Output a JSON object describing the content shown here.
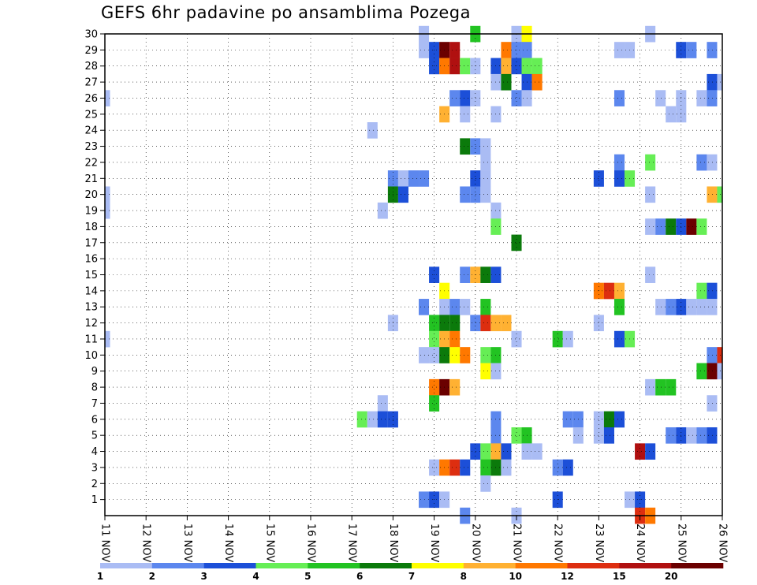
{
  "chart_data": {
    "type": "heatmap",
    "title": "GEFS 6hr padavine po ansamblima Pozega",
    "xlabel": "",
    "ylabel": "",
    "x_ticks": [
      "11 NOV",
      "12 NOV",
      "13 NOV",
      "14 NOV",
      "15 NOV",
      "16 NOV",
      "17 NOV",
      "18 NOV",
      "19 NOV",
      "20 NOV",
      "21 NOV",
      "22 NOV",
      "23 NOV",
      "24 NOV",
      "25 NOV",
      "26 NOV"
    ],
    "xlim": [
      0,
      60
    ],
    "y_ticks": [
      "1",
      "2",
      "3",
      "4",
      "5",
      "6",
      "7",
      "8",
      "9",
      "10",
      "11",
      "12",
      "13",
      "14",
      "15",
      "16",
      "17",
      "18",
      "19",
      "20",
      "21",
      "22",
      "23",
      "24",
      "25",
      "26",
      "27",
      "28",
      "29",
      "30"
    ],
    "ylim": [
      0,
      30
    ],
    "grid": true,
    "legend": {
      "placement": "bottom",
      "labels": [
        "1",
        "2",
        "3",
        "4",
        "5",
        "6",
        "7",
        "8",
        "10",
        "12",
        "15",
        "20"
      ],
      "colors": [
        "#aabcf4",
        "#5c87ee",
        "#1c4fd8",
        "#66ee55",
        "#22c322",
        "#0b7a0b",
        "#ffff00",
        "#ffb132",
        "#ff7800",
        "#dd2e10",
        "#b01010",
        "#6b0000"
      ]
    },
    "cells": [
      [
        31,
        30,
        0
      ],
      [
        36,
        30,
        4
      ],
      [
        40,
        30,
        0
      ],
      [
        41,
        30,
        6
      ],
      [
        53,
        30,
        0
      ],
      [
        31,
        29,
        0
      ],
      [
        32,
        29,
        2
      ],
      [
        33,
        29,
        11
      ],
      [
        34,
        29,
        10
      ],
      [
        39,
        29,
        8
      ],
      [
        40,
        29,
        1
      ],
      [
        41,
        29,
        1
      ],
      [
        50,
        29,
        0
      ],
      [
        51,
        29,
        0
      ],
      [
        56,
        29,
        2
      ],
      [
        57,
        29,
        1
      ],
      [
        59,
        29,
        1
      ],
      [
        32,
        28,
        2
      ],
      [
        33,
        28,
        8
      ],
      [
        34,
        28,
        10
      ],
      [
        35,
        28,
        3
      ],
      [
        36,
        28,
        0
      ],
      [
        38,
        28,
        2
      ],
      [
        39,
        28,
        7
      ],
      [
        40,
        28,
        2
      ],
      [
        41,
        28,
        3
      ],
      [
        42,
        28,
        3
      ],
      [
        38,
        27,
        0
      ],
      [
        39,
        27,
        5
      ],
      [
        41,
        27,
        2
      ],
      [
        42,
        27,
        8
      ],
      [
        59,
        27,
        2
      ],
      [
        60,
        27,
        0
      ],
      [
        0,
        26,
        0
      ],
      [
        34,
        26,
        1
      ],
      [
        35,
        26,
        2
      ],
      [
        36,
        26,
        0
      ],
      [
        40,
        26,
        1
      ],
      [
        41,
        26,
        0
      ],
      [
        50,
        26,
        1
      ],
      [
        54,
        26,
        0
      ],
      [
        56,
        26,
        0
      ],
      [
        58,
        26,
        0
      ],
      [
        59,
        26,
        1
      ],
      [
        33,
        25,
        7
      ],
      [
        35,
        25,
        0
      ],
      [
        38,
        25,
        0
      ],
      [
        55,
        25,
        0
      ],
      [
        56,
        25,
        0
      ],
      [
        26,
        24,
        0
      ],
      [
        35,
        23,
        5
      ],
      [
        36,
        23,
        1
      ],
      [
        37,
        23,
        0
      ],
      [
        37,
        22,
        0
      ],
      [
        50,
        22,
        1
      ],
      [
        53,
        22,
        3
      ],
      [
        58,
        22,
        1
      ],
      [
        59,
        22,
        0
      ],
      [
        28,
        21,
        1
      ],
      [
        29,
        21,
        0
      ],
      [
        30,
        21,
        1
      ],
      [
        31,
        21,
        1
      ],
      [
        36,
        21,
        2
      ],
      [
        37,
        21,
        0
      ],
      [
        48,
        21,
        2
      ],
      [
        50,
        21,
        2
      ],
      [
        51,
        21,
        3
      ],
      [
        0,
        20,
        0
      ],
      [
        28,
        20,
        5
      ],
      [
        29,
        20,
        2
      ],
      [
        35,
        20,
        1
      ],
      [
        36,
        20,
        1
      ],
      [
        37,
        20,
        0
      ],
      [
        53,
        20,
        0
      ],
      [
        59,
        20,
        7
      ],
      [
        60,
        20,
        3
      ],
      [
        0,
        19,
        0
      ],
      [
        27,
        19,
        0
      ],
      [
        38,
        19,
        0
      ],
      [
        38,
        18,
        3
      ],
      [
        53,
        18,
        0
      ],
      [
        54,
        18,
        1
      ],
      [
        55,
        18,
        5
      ],
      [
        56,
        18,
        2
      ],
      [
        57,
        18,
        11
      ],
      [
        58,
        18,
        3
      ],
      [
        40,
        17,
        5
      ],
      [
        32,
        15,
        2
      ],
      [
        35,
        15,
        1
      ],
      [
        36,
        15,
        7
      ],
      [
        37,
        15,
        5
      ],
      [
        38,
        15,
        2
      ],
      [
        53,
        15,
        0
      ],
      [
        33,
        14,
        6
      ],
      [
        48,
        14,
        8
      ],
      [
        49,
        14,
        9
      ],
      [
        50,
        14,
        7
      ],
      [
        58,
        14,
        3
      ],
      [
        59,
        14,
        2
      ],
      [
        31,
        13,
        1
      ],
      [
        33,
        13,
        0
      ],
      [
        34,
        13,
        1
      ],
      [
        35,
        13,
        0
      ],
      [
        37,
        13,
        4
      ],
      [
        50,
        13,
        4
      ],
      [
        54,
        13,
        0
      ],
      [
        55,
        13,
        1
      ],
      [
        56,
        13,
        2
      ],
      [
        57,
        13,
        0
      ],
      [
        58,
        13,
        0
      ],
      [
        59,
        13,
        0
      ],
      [
        28,
        12,
        0
      ],
      [
        32,
        12,
        4
      ],
      [
        33,
        12,
        5
      ],
      [
        34,
        12,
        5
      ],
      [
        36,
        12,
        1
      ],
      [
        37,
        12,
        9
      ],
      [
        38,
        12,
        7
      ],
      [
        39,
        12,
        7
      ],
      [
        48,
        12,
        0
      ],
      [
        0,
        11,
        0
      ],
      [
        32,
        11,
        3
      ],
      [
        33,
        11,
        7
      ],
      [
        34,
        11,
        8
      ],
      [
        40,
        11,
        0
      ],
      [
        44,
        11,
        4
      ],
      [
        45,
        11,
        0
      ],
      [
        50,
        11,
        2
      ],
      [
        51,
        11,
        3
      ],
      [
        31,
        10,
        0
      ],
      [
        32,
        10,
        0
      ],
      [
        33,
        10,
        5
      ],
      [
        34,
        10,
        6
      ],
      [
        35,
        10,
        8
      ],
      [
        37,
        10,
        3
      ],
      [
        38,
        10,
        4
      ],
      [
        59,
        10,
        1
      ],
      [
        60,
        10,
        9
      ],
      [
        37,
        9,
        6
      ],
      [
        38,
        9,
        0
      ],
      [
        58,
        9,
        4
      ],
      [
        59,
        9,
        11
      ],
      [
        60,
        9,
        0
      ],
      [
        32,
        8,
        8
      ],
      [
        33,
        8,
        11
      ],
      [
        34,
        8,
        7
      ],
      [
        53,
        8,
        0
      ],
      [
        54,
        8,
        4
      ],
      [
        55,
        8,
        4
      ],
      [
        27,
        7,
        0
      ],
      [
        32,
        7,
        4
      ],
      [
        59,
        7,
        0
      ],
      [
        25,
        6,
        3
      ],
      [
        26,
        6,
        0
      ],
      [
        27,
        6,
        2
      ],
      [
        28,
        6,
        2
      ],
      [
        38,
        6,
        1
      ],
      [
        45,
        6,
        1
      ],
      [
        46,
        6,
        1
      ],
      [
        48,
        6,
        0
      ],
      [
        49,
        6,
        5
      ],
      [
        50,
        6,
        2
      ],
      [
        38,
        5,
        1
      ],
      [
        40,
        5,
        3
      ],
      [
        41,
        5,
        4
      ],
      [
        46,
        5,
        0
      ],
      [
        48,
        5,
        0
      ],
      [
        49,
        5,
        2
      ],
      [
        55,
        5,
        1
      ],
      [
        56,
        5,
        2
      ],
      [
        57,
        5,
        0
      ],
      [
        58,
        5,
        1
      ],
      [
        59,
        5,
        2
      ],
      [
        36,
        4,
        2
      ],
      [
        37,
        4,
        3
      ],
      [
        38,
        4,
        7
      ],
      [
        39,
        4,
        2
      ],
      [
        41,
        4,
        0
      ],
      [
        42,
        4,
        0
      ],
      [
        52,
        4,
        10
      ],
      [
        53,
        4,
        2
      ],
      [
        32,
        3,
        0
      ],
      [
        33,
        3,
        8
      ],
      [
        34,
        3,
        9
      ],
      [
        35,
        3,
        2
      ],
      [
        37,
        3,
        4
      ],
      [
        38,
        3,
        5
      ],
      [
        39,
        3,
        0
      ],
      [
        44,
        3,
        1
      ],
      [
        45,
        3,
        2
      ],
      [
        37,
        2,
        0
      ],
      [
        31,
        1,
        1
      ],
      [
        32,
        1,
        2
      ],
      [
        33,
        1,
        0
      ],
      [
        44,
        1,
        2
      ],
      [
        51,
        1,
        0
      ],
      [
        52,
        1,
        2
      ],
      [
        35,
        0,
        1
      ],
      [
        40,
        0,
        0
      ],
      [
        52,
        0,
        9
      ],
      [
        53,
        0,
        8
      ]
    ]
  }
}
